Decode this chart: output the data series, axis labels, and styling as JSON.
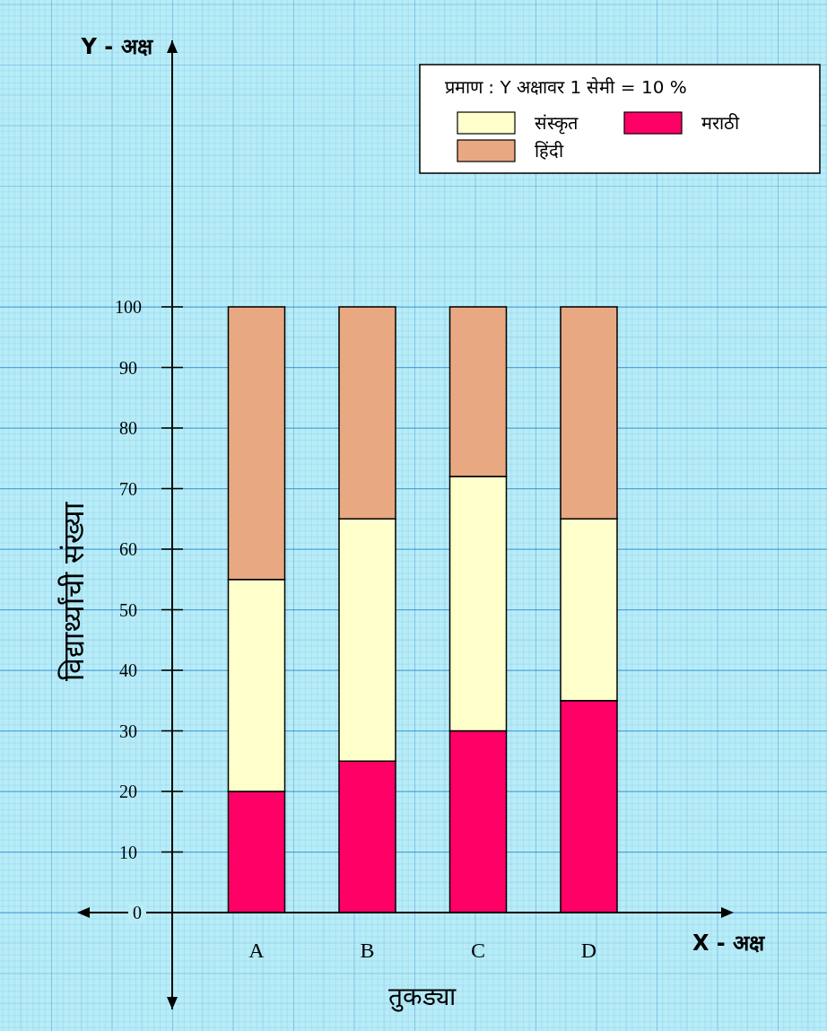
{
  "chart_data": {
    "type": "bar",
    "stacked": true,
    "xlabel": "तुकड्या",
    "ylabel": "विद्यार्थ्यांची संख्या",
    "legend_title": "प्रमाण : Y अक्षावर 1 सेमी = 10 %",
    "annotations": [
      "Y - अक्ष",
      "X - अक्ष"
    ],
    "categories": [
      "A",
      "B",
      "C",
      "D"
    ],
    "series": [
      {
        "name": "मराठी",
        "color": "#ff0066",
        "values": [
          20,
          25,
          30,
          35
        ]
      },
      {
        "name": "संस्कृत",
        "color": "#ffffcc",
        "values": [
          35,
          40,
          42,
          30
        ]
      },
      {
        "name": "हिंदी",
        "color": "#e8a882",
        "values": [
          45,
          35,
          28,
          35
        ]
      }
    ],
    "ylim": [
      -16,
      144
    ],
    "yticks": [
      0,
      10,
      20,
      30,
      40,
      50,
      60,
      70,
      80,
      90,
      100
    ],
    "grid": true,
    "legend": "top right"
  }
}
